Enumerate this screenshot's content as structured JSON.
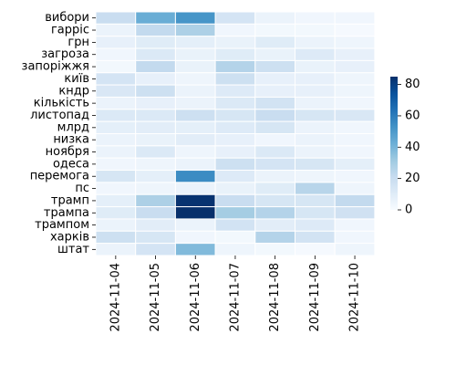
{
  "chart_data": {
    "type": "heatmap",
    "title": "",
    "xlabel": "",
    "ylabel": "",
    "x": [
      "2024-11-04",
      "2024-11-05",
      "2024-11-06",
      "2024-11-07",
      "2024-11-08",
      "2024-11-09",
      "2024-11-10"
    ],
    "y": [
      "вибори",
      "гарріс",
      "грн",
      "загроза",
      "запоріжжя",
      "київ",
      "кндр",
      "кількість",
      "листопад",
      "млрд",
      "низка",
      "ноября",
      "одеса",
      "перемога",
      "пс",
      "трамп",
      "трампа",
      "трампом",
      "харків",
      "штат"
    ],
    "values": [
      [
        20,
        43,
        52,
        15,
        5,
        3,
        3
      ],
      [
        5,
        22,
        28,
        3,
        2,
        2,
        1
      ],
      [
        7,
        10,
        8,
        6,
        10,
        5,
        4
      ],
      [
        3,
        12,
        6,
        10,
        6,
        11,
        7
      ],
      [
        2,
        22,
        6,
        26,
        18,
        6,
        7
      ],
      [
        15,
        7,
        4,
        18,
        7,
        7,
        4
      ],
      [
        13,
        18,
        5,
        11,
        7,
        7,
        4
      ],
      [
        5,
        7,
        5,
        12,
        16,
        5,
        3
      ],
      [
        12,
        12,
        18,
        14,
        20,
        14,
        13
      ],
      [
        8,
        9,
        8,
        11,
        14,
        5,
        3
      ],
      [
        5,
        6,
        9,
        7,
        3,
        5,
        3
      ],
      [
        5,
        12,
        4,
        7,
        12,
        5,
        3
      ],
      [
        3,
        4,
        5,
        18,
        15,
        14,
        8
      ],
      [
        14,
        8,
        55,
        11,
        5,
        4,
        3
      ],
      [
        3,
        4,
        5,
        6,
        10,
        25,
        4
      ],
      [
        8,
        28,
        84,
        20,
        14,
        14,
        22
      ],
      [
        10,
        20,
        85,
        30,
        26,
        14,
        17
      ],
      [
        5,
        9,
        5,
        16,
        9,
        11,
        3
      ],
      [
        18,
        14,
        3,
        2,
        26,
        16,
        3
      ],
      [
        5,
        15,
        38,
        4,
        2,
        1,
        4
      ]
    ],
    "colorbar": {
      "min": 0,
      "max": 85,
      "ticks": [
        0,
        20,
        40,
        60,
        80
      ]
    },
    "colormap": "Blues",
    "grid": false
  }
}
